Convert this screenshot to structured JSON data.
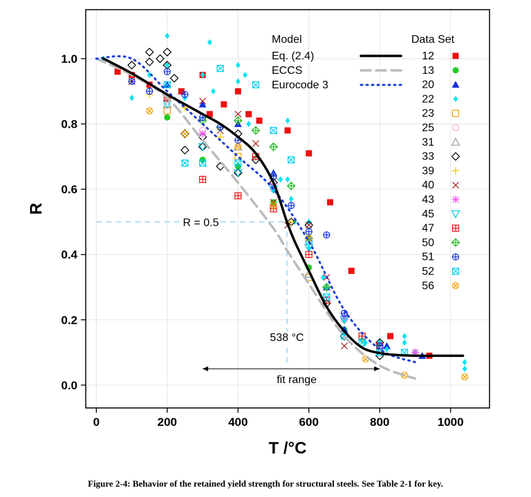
{
  "figure": {
    "caption": "Figure 2-4: Behavior of the retained yield strength for structural steels. See Table 2-1 for key."
  },
  "chart_data": {
    "type": "scatter",
    "xlabel": "T /°C",
    "ylabel": "R",
    "xlim": [
      -30,
      1110
    ],
    "ylim": [
      -0.07,
      1.15
    ],
    "xticks": [
      0,
      200,
      400,
      600,
      800,
      1000
    ],
    "yticks": [
      0.0,
      0.2,
      0.4,
      0.6,
      0.8,
      1.0
    ],
    "xtick_labels": [
      "0",
      "200",
      "400",
      "600",
      "800",
      "1000"
    ],
    "ytick_labels": [
      "0.0",
      "0.2",
      "0.4",
      "0.6",
      "0.8",
      "1.0"
    ],
    "grid": true,
    "model_legend_title": "Model",
    "dataset_legend_title": "Data Set",
    "models": [
      {
        "name": "Eq. (2.4)",
        "color": "#000000",
        "style": "solid",
        "x": [
          20,
          100,
          200,
          250,
          300,
          350,
          400,
          450,
          500,
          538,
          560,
          600,
          650,
          700,
          750,
          800,
          850,
          900,
          950,
          1000,
          1035
        ],
        "y": [
          1.0,
          0.955,
          0.89,
          0.86,
          0.83,
          0.8,
          0.76,
          0.71,
          0.62,
          0.5,
          0.44,
          0.35,
          0.24,
          0.165,
          0.115,
          0.098,
          0.092,
          0.09,
          0.09,
          0.09,
          0.09
        ]
      },
      {
        "name": "ECCS",
        "color": "#bbbbbb",
        "style": "dashed",
        "x": [
          0,
          100,
          200,
          300,
          400,
          500,
          540,
          600,
          700,
          800,
          900
        ],
        "y": [
          1.0,
          0.95,
          0.88,
          0.75,
          0.62,
          0.48,
          0.41,
          0.31,
          0.15,
          0.06,
          0.02
        ]
      },
      {
        "name": "Eurocode 3",
        "color": "#1a3ed6",
        "style": "dotted",
        "x": [
          0,
          100,
          200,
          300,
          400,
          500,
          600,
          700,
          800,
          900
        ],
        "y": [
          1.0,
          1.0,
          0.9,
          0.8,
          0.7,
          0.6,
          0.44,
          0.23,
          0.11,
          0.07
        ]
      }
    ],
    "annotations": {
      "r_line_label": "R = 0.5",
      "r_line_value": 0.5,
      "t_line_label": "538 °C",
      "t_line_value": 538,
      "fit_range_label": "fit range",
      "fit_range": [
        300,
        800
      ]
    },
    "series": [
      {
        "name": "12",
        "marker": "square-filled",
        "color": "#ee1111",
        "x": [
          60,
          100,
          150,
          240,
          300,
          320,
          360,
          400,
          430,
          460,
          540,
          600,
          660,
          720,
          830,
          940
        ],
        "y": [
          0.96,
          0.95,
          0.92,
          0.9,
          0.95,
          0.83,
          0.86,
          0.9,
          0.83,
          0.81,
          0.78,
          0.71,
          0.56,
          0.35,
          0.15,
          0.09
        ]
      },
      {
        "name": "13",
        "marker": "circle-filled",
        "color": "#22cc22",
        "x": [
          200,
          300,
          400,
          500,
          600,
          700
        ],
        "y": [
          0.82,
          0.69,
          0.67,
          0.56,
          0.36,
          0.17
        ]
      },
      {
        "name": "20",
        "marker": "triangle-filled",
        "color": "#1133dd",
        "x": [
          200,
          300,
          400,
          500,
          600,
          650,
          700,
          820,
          920
        ],
        "y": [
          0.92,
          0.86,
          0.8,
          0.65,
          0.45,
          0.3,
          0.17,
          0.12,
          0.09
        ]
      },
      {
        "name": "22",
        "marker": "diamond-filled",
        "color": "#00e5ee",
        "x": [
          20,
          100,
          150,
          200,
          200,
          250,
          300,
          320,
          330,
          400,
          400,
          420,
          430,
          500,
          520,
          540,
          540,
          550,
          560,
          600,
          600,
          640,
          650,
          700,
          700,
          750,
          760,
          800,
          820,
          870,
          870,
          900,
          1040,
          1040
        ],
        "y": [
          1.0,
          0.88,
          0.95,
          1.07,
          0.98,
          0.88,
          0.95,
          1.05,
          0.9,
          0.98,
          0.93,
          0.95,
          0.8,
          0.6,
          0.63,
          0.81,
          0.63,
          0.57,
          0.5,
          0.5,
          0.42,
          0.33,
          0.3,
          0.2,
          0.16,
          0.14,
          0.13,
          0.13,
          0.11,
          0.15,
          0.13,
          0.1,
          0.07,
          0.05
        ]
      },
      {
        "name": "23",
        "marker": "square-open",
        "color": "#f0a000",
        "x": [
          200,
          400,
          600,
          800
        ],
        "y": [
          0.84,
          0.7,
          0.33,
          0.12
        ]
      },
      {
        "name": "25",
        "marker": "circle-open",
        "color": "#ffaacc",
        "x": [
          300,
          500,
          700,
          900
        ],
        "y": [
          0.78,
          0.6,
          0.2,
          0.1
        ]
      },
      {
        "name": "31",
        "marker": "triangle-open",
        "color": "#999999",
        "x": [
          200,
          400,
          500,
          600,
          800
        ],
        "y": [
          0.86,
          0.73,
          0.64,
          0.34,
          0.1
        ]
      },
      {
        "name": "33",
        "marker": "diamond-open",
        "color": "#000000",
        "x": [
          100,
          150,
          150,
          180,
          200,
          200,
          220,
          250,
          250,
          300,
          300,
          350,
          400,
          400,
          450,
          500,
          550,
          600,
          650,
          700,
          800,
          800
        ],
        "y": [
          0.98,
          1.02,
          0.99,
          1.0,
          1.02,
          0.98,
          0.94,
          0.77,
          0.72,
          0.76,
          0.73,
          0.67,
          0.77,
          0.65,
          0.69,
          0.62,
          0.5,
          0.49,
          0.25,
          0.15,
          0.13,
          0.09
        ]
      },
      {
        "name": "39",
        "marker": "plus",
        "color": "#f5c400",
        "x": [
          150,
          250,
          350,
          450,
          550,
          650,
          750
        ],
        "y": [
          0.89,
          0.85,
          0.76,
          0.7,
          0.5,
          0.3,
          0.14
        ]
      },
      {
        "name": "40",
        "marker": "cross",
        "color": "#aa2222",
        "x": [
          100,
          200,
          300,
          350,
          400,
          450,
          500,
          540,
          600,
          650,
          700,
          800
        ],
        "y": [
          0.93,
          0.88,
          0.87,
          0.78,
          0.83,
          0.74,
          0.56,
          0.49,
          0.49,
          0.33,
          0.12,
          0.1
        ]
      },
      {
        "name": "43",
        "marker": "asterisk",
        "color": "#ee55ee",
        "x": [
          300,
          500,
          700,
          900
        ],
        "y": [
          0.77,
          0.61,
          0.21,
          0.1
        ]
      },
      {
        "name": "45",
        "marker": "triangle-down-open",
        "color": "#00c8e0",
        "x": [
          200,
          300,
          400,
          500,
          600,
          700
        ],
        "y": [
          0.86,
          0.73,
          0.65,
          0.6,
          0.42,
          0.2
        ]
      },
      {
        "name": "47",
        "marker": "square-plus",
        "color": "#ee1111",
        "x": [
          200,
          300,
          400,
          450,
          500,
          600,
          650,
          750,
          800
        ],
        "y": [
          0.88,
          0.63,
          0.58,
          0.7,
          0.54,
          0.4,
          0.26,
          0.15,
          0.12
        ]
      },
      {
        "name": "50",
        "marker": "diamond-plus",
        "color": "#22bb22",
        "x": [
          300,
          350,
          400,
          450,
          500,
          550,
          600,
          650
        ],
        "y": [
          0.81,
          0.79,
          0.81,
          0.78,
          0.73,
          0.61,
          0.45,
          0.3
        ]
      },
      {
        "name": "51",
        "marker": "circle-plus",
        "color": "#1133dd",
        "x": [
          100,
          150,
          200,
          250,
          300,
          350,
          400,
          500,
          550,
          600,
          650,
          700,
          800
        ],
        "y": [
          0.93,
          0.9,
          0.96,
          0.89,
          0.82,
          0.79,
          0.75,
          0.64,
          0.55,
          0.47,
          0.46,
          0.22,
          0.12
        ]
      },
      {
        "name": "52",
        "marker": "square-cross",
        "color": "#00d0ee",
        "x": [
          200,
          250,
          300,
          350,
          400,
          450,
          500,
          550,
          600,
          650,
          700,
          750,
          800,
          870
        ],
        "y": [
          0.92,
          0.68,
          0.68,
          0.97,
          0.68,
          0.92,
          0.78,
          0.69,
          0.44,
          0.27,
          0.15,
          0.13,
          0.1,
          0.1
        ]
      },
      {
        "name": "56",
        "marker": "circle-cross",
        "color": "#f0a000",
        "x": [
          150,
          250,
          400,
          500,
          600,
          760,
          870,
          1040
        ],
        "y": [
          0.84,
          0.77,
          0.73,
          0.55,
          0.45,
          0.08,
          0.03,
          0.025
        ]
      }
    ]
  }
}
